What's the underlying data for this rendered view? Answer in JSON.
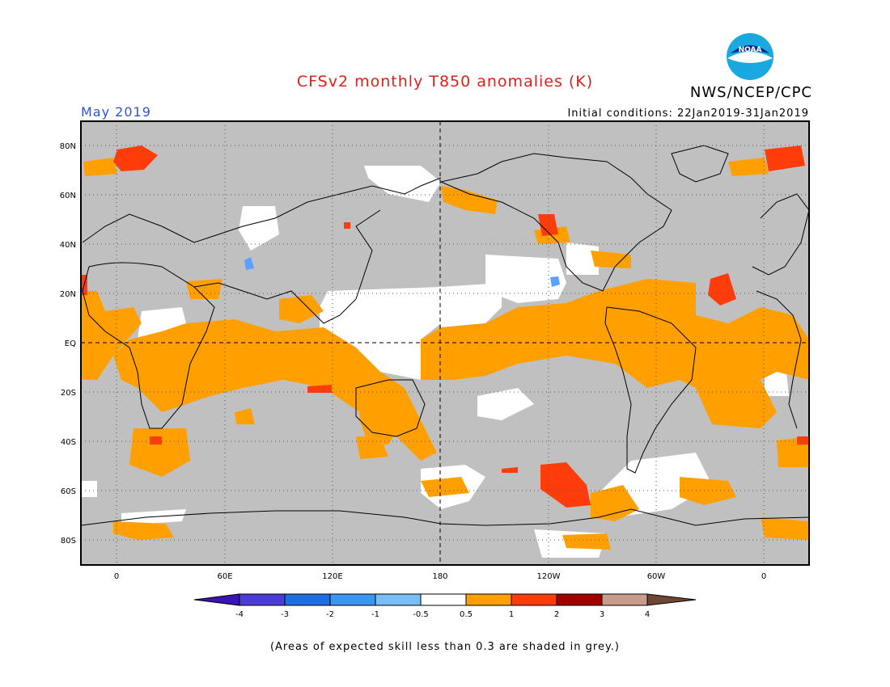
{
  "header": {
    "title": "CFSv2 monthly T850 anomalies (K)",
    "agency": "NWS/NCEP/CPC",
    "period": "May 2019",
    "initial_conditions": "Initial conditions: 22Jan2019-31Jan2019",
    "logo_text": "NOAA"
  },
  "map": {
    "lon_labels": [
      "0",
      "60E",
      "120E",
      "180",
      "120W",
      "60W",
      "0"
    ],
    "lat_labels": [
      "80N",
      "60N",
      "40N",
      "20N",
      "EQ",
      "20S",
      "40S",
      "60S",
      "80S"
    ],
    "colors": {
      "grey": "#c0c0c0",
      "white": "#ffffff",
      "orange": "#ff9f00",
      "red": "#ff3c0a",
      "light_blue": "#5aa0ff"
    }
  },
  "colorbar": {
    "labels": [
      "-4",
      "-3",
      "-2",
      "-1",
      "-0.5",
      "0.5",
      "1",
      "2",
      "3",
      "4"
    ],
    "colors": [
      "#3a14b4",
      "#4b3cd6",
      "#1e6ee0",
      "#3c96f0",
      "#78bef8",
      "#ffffff",
      "#ff9f00",
      "#ff3c0a",
      "#a00000",
      "#c89b8c",
      "#6e4632"
    ]
  },
  "footer": {
    "note": "(Areas of expected skill less than 0.3 are shaded in grey.)"
  }
}
